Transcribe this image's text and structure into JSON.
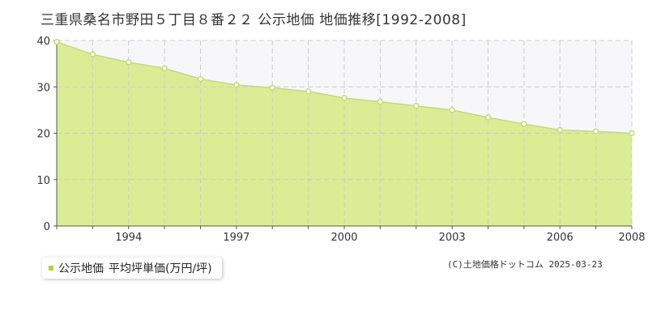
{
  "title": "三重県桑名市野田５丁目８番２２ 公示地価 地価推移[1992-2008]",
  "legend": {
    "series_label": "公示地価",
    "unit_label": "平均坪単価(万円/坪)"
  },
  "copyright": "(C)土地価格ドットコム 2025-03-23",
  "colors": {
    "fill": "#dcec94",
    "line": "#c5dc6e",
    "grid": "#cccccc",
    "axis": "#555555",
    "marker_fill": "#ffffff",
    "legend_swatch": "#b5d334",
    "upper_bg": "#f7f7f9"
  },
  "chart_data": {
    "type": "area",
    "title": "三重県桑名市野田５丁目８番２２ 公示地価 地価推移[1992-2008]",
    "x": [
      1992,
      1993,
      1994,
      1995,
      1996,
      1997,
      1998,
      1999,
      2000,
      2001,
      2002,
      2003,
      2004,
      2005,
      2006,
      2007,
      2008
    ],
    "series": [
      {
        "name": "公示地価",
        "values": [
          39.7,
          37.0,
          35.3,
          34.0,
          31.7,
          30.4,
          29.8,
          29.0,
          27.6,
          26.8,
          25.9,
          25.0,
          23.4,
          22.0,
          20.7,
          20.4,
          20.0
        ]
      }
    ],
    "xlim": [
      1992,
      2008
    ],
    "ylim": [
      0,
      40
    ],
    "x_ticks": [
      1994,
      1997,
      2000,
      2003,
      2006,
      2008
    ],
    "y_ticks": [
      0,
      10,
      20,
      30,
      40
    ],
    "xlabel": "",
    "ylabel": "",
    "grid": true,
    "legend_position": "bottom-left"
  }
}
